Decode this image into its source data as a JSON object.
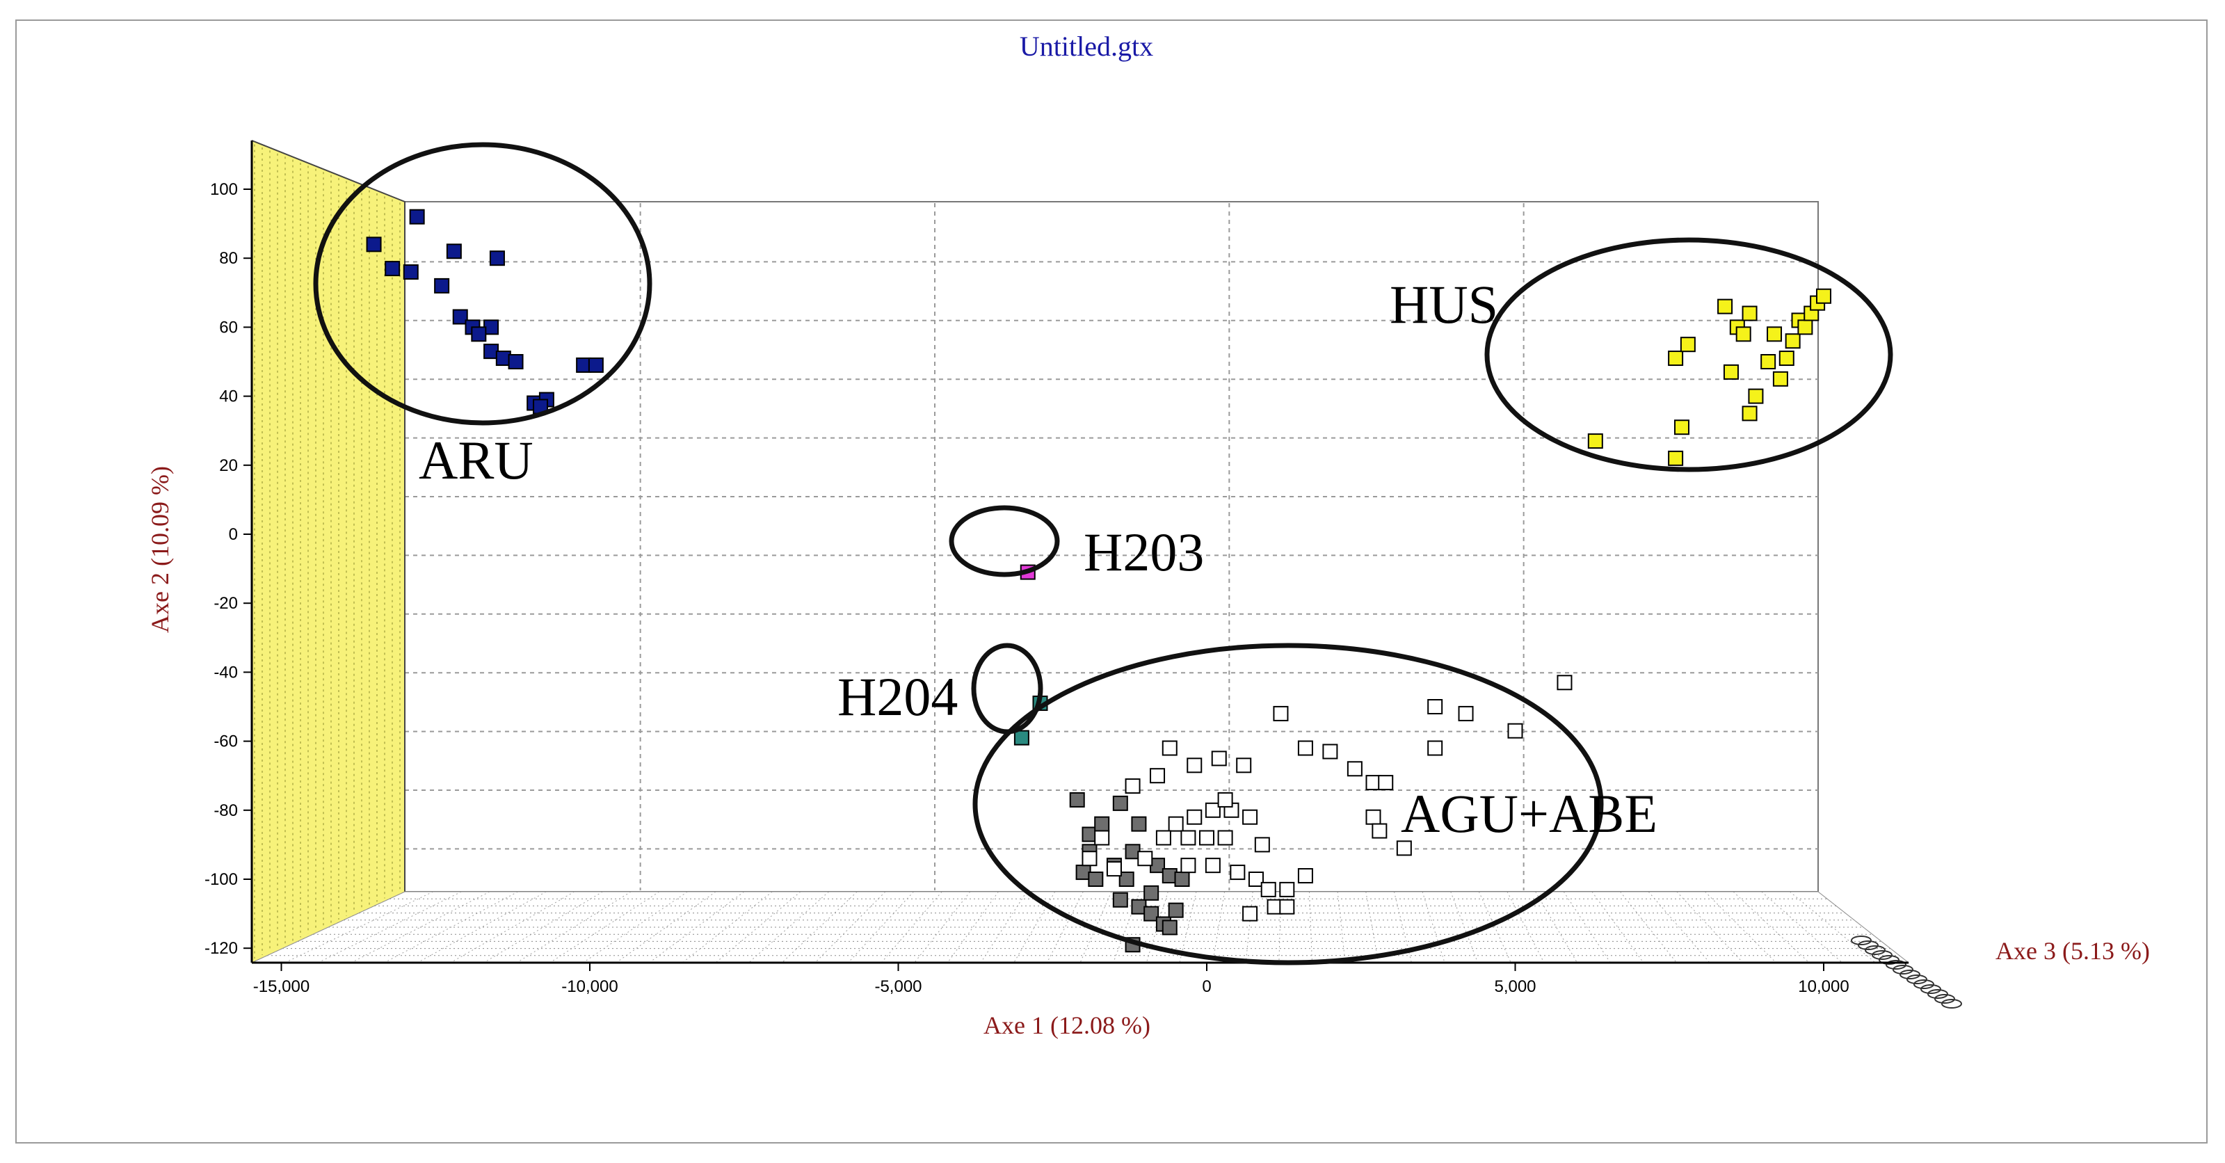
{
  "chart_data": {
    "type": "scatter",
    "title": "Untitled.gtx",
    "xlabel": "Axe 1 (12.08 %)",
    "ylabel": "Axe 2 (10.09 %)",
    "zlabel": "Axe 3 (5.13 %)",
    "xlim": [
      -15500,
      10500
    ],
    "ylim": [
      -135,
      110
    ],
    "x_ticks": [
      "-15,000",
      "-10,000",
      "-5,000",
      "0",
      "5,000",
      "10,000"
    ],
    "x_tick_values": [
      -15000,
      -10000,
      -5000,
      0,
      5000,
      10000
    ],
    "y_ticks": [
      "100",
      "80",
      "60",
      "40",
      "20",
      "0",
      "-20",
      "-40",
      "-60",
      "-80",
      "-100",
      "-120"
    ],
    "y_tick_values": [
      100,
      80,
      60,
      40,
      20,
      0,
      -20,
      -40,
      -60,
      -80,
      -100,
      -120
    ],
    "grid": true,
    "colors": {
      "wall": "#f7f27a",
      "ARU": "#0c1a8c",
      "HUS": "#f5f21a",
      "H203": "#e23ad8",
      "H204": "#2a8a80",
      "AGU": "#6e6e6e",
      "ABE": "#ffffff"
    },
    "groups": [
      {
        "label": "ARU"
      },
      {
        "label": "HUS"
      },
      {
        "label": "H203"
      },
      {
        "label": "H204"
      },
      {
        "label": "AGU+ABE"
      }
    ],
    "series": [
      {
        "color": "#0c1a8c",
        "points": [
          [
            -13500,
            84
          ],
          [
            -12800,
            92
          ],
          [
            -13200,
            77
          ],
          [
            -12900,
            76
          ],
          [
            -12200,
            82
          ],
          [
            -11500,
            80
          ],
          [
            -12400,
            72
          ],
          [
            -12100,
            63
          ],
          [
            -11900,
            60
          ],
          [
            -11600,
            60
          ],
          [
            -11800,
            58
          ],
          [
            -11600,
            53
          ],
          [
            -11400,
            51
          ],
          [
            -11200,
            50
          ],
          [
            -10900,
            38
          ],
          [
            -10700,
            39
          ],
          [
            -10800,
            37
          ],
          [
            -10100,
            49
          ],
          [
            -9900,
            49
          ]
        ]
      },
      {
        "color": "#f5f21a",
        "points": [
          [
            6300,
            27
          ],
          [
            7600,
            51
          ],
          [
            7800,
            55
          ],
          [
            7700,
            31
          ],
          [
            7600,
            22
          ],
          [
            8400,
            66
          ],
          [
            8600,
            60
          ],
          [
            8700,
            58
          ],
          [
            8800,
            64
          ],
          [
            8500,
            47
          ],
          [
            8900,
            40
          ],
          [
            8800,
            35
          ],
          [
            9200,
            58
          ],
          [
            9100,
            50
          ],
          [
            9400,
            51
          ],
          [
            9300,
            45
          ],
          [
            9500,
            56
          ],
          [
            9600,
            62
          ],
          [
            9700,
            60
          ],
          [
            9800,
            64
          ],
          [
            9900,
            67
          ],
          [
            10000,
            69
          ]
        ]
      },
      {
        "color": "#e23ad8",
        "points": [
          [
            -2900,
            -11
          ]
        ]
      },
      {
        "color": "#2a8a80",
        "points": [
          [
            -2700,
            -49
          ],
          [
            -3000,
            -59
          ]
        ]
      },
      {
        "color": "#6e6e6e",
        "points": [
          [
            -2100,
            -77
          ],
          [
            -1900,
            -87
          ],
          [
            -1700,
            -84
          ],
          [
            -1900,
            -92
          ],
          [
            -2000,
            -98
          ],
          [
            -1800,
            -100
          ],
          [
            -1400,
            -78
          ],
          [
            -1100,
            -84
          ],
          [
            -1200,
            -92
          ],
          [
            -1500,
            -96
          ],
          [
            -1300,
            -100
          ],
          [
            -1400,
            -106
          ],
          [
            -1100,
            -108
          ],
          [
            -900,
            -104
          ],
          [
            -800,
            -96
          ],
          [
            -600,
            -99
          ],
          [
            -900,
            -110
          ],
          [
            -700,
            -113
          ],
          [
            -500,
            -109
          ],
          [
            -400,
            -100
          ],
          [
            -600,
            -114
          ],
          [
            -1200,
            -119
          ]
        ]
      },
      {
        "color": "#ffffff",
        "points": [
          [
            -1200,
            -73
          ],
          [
            -800,
            -70
          ],
          [
            -600,
            -62
          ],
          [
            -200,
            -67
          ],
          [
            200,
            -65
          ],
          [
            600,
            -67
          ],
          [
            700,
            -82
          ],
          [
            400,
            -80
          ],
          [
            100,
            -80
          ],
          [
            -200,
            -82
          ],
          [
            -500,
            -84
          ],
          [
            -700,
            -88
          ],
          [
            -300,
            -88
          ],
          [
            0,
            -88
          ],
          [
            300,
            -88
          ],
          [
            900,
            -90
          ],
          [
            -1700,
            -88
          ],
          [
            -1900,
            -94
          ],
          [
            -1500,
            -97
          ],
          [
            -1000,
            -94
          ],
          [
            -300,
            -96
          ],
          [
            100,
            -96
          ],
          [
            500,
            -98
          ],
          [
            800,
            -100
          ],
          [
            1000,
            -103
          ],
          [
            1300,
            -103
          ],
          [
            1600,
            -99
          ],
          [
            700,
            -110
          ],
          [
            1100,
            -108
          ],
          [
            1300,
            -108
          ],
          [
            2000,
            -63
          ],
          [
            2400,
            -68
          ],
          [
            2700,
            -72
          ],
          [
            2900,
            -72
          ],
          [
            2700,
            -82
          ],
          [
            2800,
            -86
          ],
          [
            3200,
            -91
          ],
          [
            3700,
            -62
          ],
          [
            4200,
            -52
          ],
          [
            5000,
            -57
          ],
          [
            3700,
            -50
          ],
          [
            5800,
            -43
          ],
          [
            1200,
            -52
          ],
          [
            1600,
            -62
          ],
          [
            300,
            -77
          ]
        ]
      }
    ]
  }
}
